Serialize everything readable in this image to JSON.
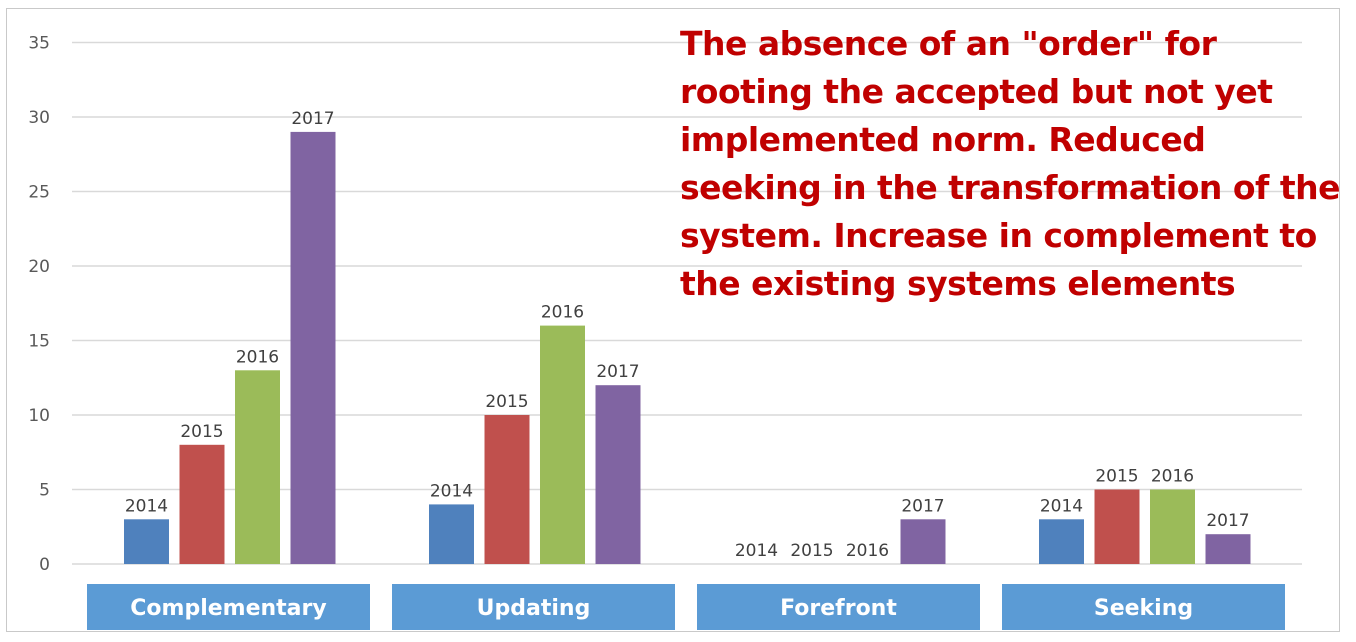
{
  "chart_data": {
    "type": "bar",
    "categories": [
      "Complementary",
      "Updating",
      "Forefront",
      "Seeking"
    ],
    "series": [
      {
        "name": "2014",
        "values": [
          3,
          4,
          0,
          3
        ]
      },
      {
        "name": "2015",
        "values": [
          8,
          10,
          0,
          5
        ]
      },
      {
        "name": "2016",
        "values": [
          13,
          16,
          0,
          5
        ]
      },
      {
        "name": "2017",
        "values": [
          29,
          12,
          3,
          2
        ]
      }
    ],
    "ylim": [
      0,
      35
    ],
    "yticks": [
      0,
      5,
      10,
      15,
      20,
      25,
      30,
      35
    ],
    "grid": true,
    "legend": "none",
    "data_labels": "series name above each bar",
    "annotation": "The absence of an \"order\" for rooting the accepted but not yet implemented norm. Reduced seeking in the transformation of the system. Increase in complement to the existing systems elements",
    "colors": {
      "2014": "#4f81bd",
      "2015": "#c0504d",
      "2016": "#9bbb59",
      "2017": "#8064a2",
      "category_box": "#5b9bd5",
      "annotation": "#c00000",
      "grid": "#d9d9d9"
    }
  }
}
